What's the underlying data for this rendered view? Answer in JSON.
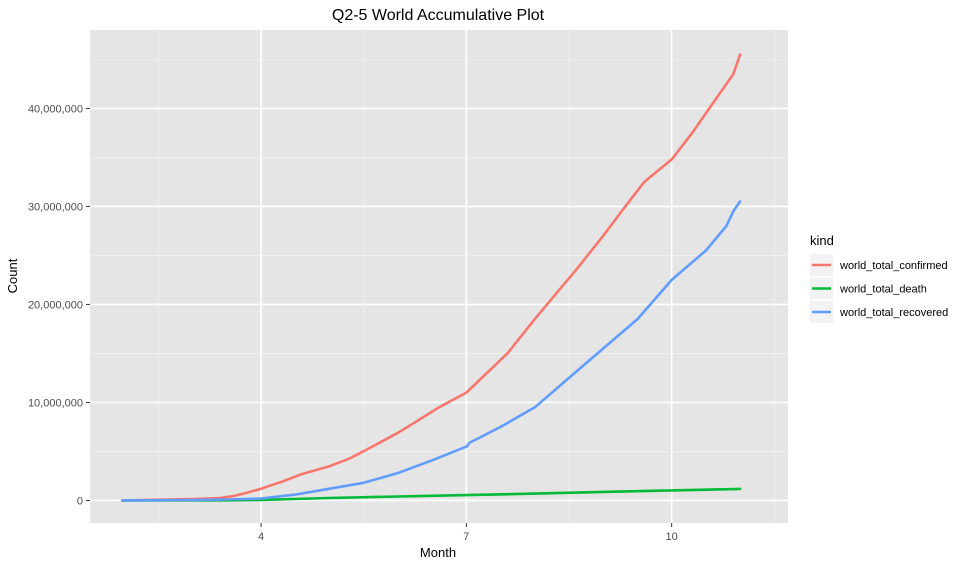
{
  "chart_data": {
    "type": "line",
    "title": "Q2-5 World Accumulative Plot",
    "xlabel": "Month",
    "ylabel": "Count",
    "xlim": [
      1.5,
      11.7
    ],
    "ylim": [
      -2300000,
      48000000
    ],
    "x_ticks": [
      4,
      7,
      10
    ],
    "x_minor_ticks": [
      2.5,
      5.5,
      8.5,
      11.5
    ],
    "x_tick_labels": [
      "4",
      "7",
      "10"
    ],
    "y_ticks": [
      0,
      10000000,
      20000000,
      30000000,
      40000000
    ],
    "y_minor_ticks": [
      5000000,
      15000000,
      25000000,
      35000000,
      45000000
    ],
    "y_tick_labels": [
      "0",
      "10,000,000",
      "20,000,000",
      "30,000,000",
      "40,000,000"
    ],
    "grid": true,
    "background": "#E5E5E5",
    "legend": {
      "title": "kind",
      "placement": "right"
    },
    "series": [
      {
        "name": "world_total_confirmed",
        "color": "#F8766D",
        "x": [
          1.97,
          2.5,
          3.0,
          3.4,
          3.6,
          3.8,
          4.0,
          4.3,
          4.6,
          5.0,
          5.3,
          5.6,
          6.0,
          6.3,
          6.6,
          7.0,
          7.3,
          7.6,
          8.0,
          8.3,
          8.6,
          9.0,
          9.3,
          9.6,
          10.0,
          10.3,
          10.6,
          10.9,
          11.0
        ],
        "values": [
          0,
          80000,
          150000,
          250000,
          450000,
          800000,
          1200000,
          1900000,
          2700000,
          3500000,
          4300000,
          5400000,
          6900000,
          8200000,
          9500000,
          11000000,
          13000000,
          15000000,
          18500000,
          21000000,
          23500000,
          27000000,
          29800000,
          32500000,
          34800000,
          37500000,
          40500000,
          43500000,
          45500000
        ]
      },
      {
        "name": "world_total_death",
        "color": "#00BA38",
        "x": [
          1.97,
          3.5,
          4.0,
          5.0,
          6.0,
          7.0,
          8.0,
          9.0,
          10.0,
          11.0
        ],
        "values": [
          0,
          20000,
          60000,
          250000,
          400000,
          550000,
          700000,
          870000,
          1030000,
          1180000
        ]
      },
      {
        "name": "world_total_recovered",
        "color": "#619CFF",
        "x": [
          1.97,
          3.0,
          3.5,
          4.0,
          4.5,
          5.0,
          5.5,
          6.0,
          6.5,
          7.0,
          7.05,
          7.5,
          8.0,
          8.5,
          9.0,
          9.5,
          10.0,
          10.5,
          10.8,
          10.9,
          11.0
        ],
        "values": [
          0,
          50000,
          100000,
          200000,
          600000,
          1200000,
          1800000,
          2800000,
          4100000,
          5500000,
          5900000,
          7500000,
          9500000,
          12500000,
          15500000,
          18500000,
          22500000,
          25500000,
          28000000,
          29500000,
          30500000
        ]
      }
    ]
  }
}
